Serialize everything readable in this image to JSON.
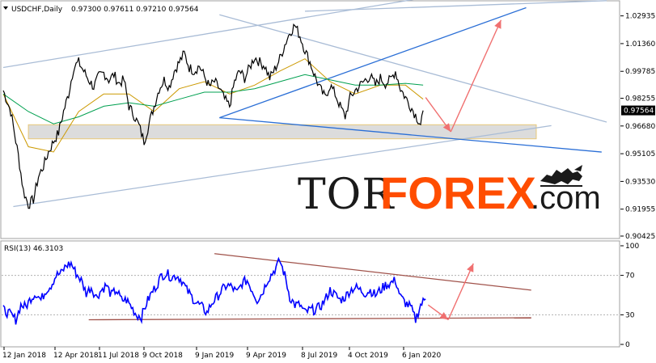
{
  "chart_data": [
    {
      "type": "line",
      "panel": "price",
      "symbol_header": "USDCHF,Daily",
      "ohlc_header": "0.97300 0.97611 0.97210 0.97564",
      "current_price_label": "0.97564",
      "y_ticks": [
        "1.02935",
        "1.01360",
        "0.99785",
        "0.98255",
        "0.96680",
        "0.95105",
        "0.93530",
        "0.91955",
        "0.90425"
      ],
      "y_tick_values": [
        1.02935,
        1.0136,
        0.99785,
        0.98255,
        0.9668,
        0.95105,
        0.9353,
        0.91955,
        0.90425
      ],
      "ylim": [
        0.90425,
        1.0347
      ],
      "x_ticks": [
        "12 Jan 2018",
        "12 Apr 2018",
        "11 Jul 2018",
        "9 Oct 2018",
        "9 Jan 2019",
        "9 Apr 2019",
        "8 Jul 2019",
        "4 Oct 2019",
        "6 Jan 2020"
      ],
      "price_path": [
        [
          0,
          0.987
        ],
        [
          3,
          0.975
        ],
        [
          6,
          0.95
        ],
        [
          8,
          0.93
        ],
        [
          10,
          0.922
        ],
        [
          12,
          0.925
        ],
        [
          14,
          0.938
        ],
        [
          16,
          0.944
        ],
        [
          18,
          0.952
        ],
        [
          20,
          0.958
        ],
        [
          22,
          0.963
        ],
        [
          24,
          0.975
        ],
        [
          26,
          0.985
        ],
        [
          28,
          1.0
        ],
        [
          30,
          1.003
        ],
        [
          32,
          0.998
        ],
        [
          34,
          0.993
        ],
        [
          36,
          0.989
        ],
        [
          38,
          0.995
        ],
        [
          40,
          0.997
        ],
        [
          42,
          0.993
        ],
        [
          44,
          0.996
        ],
        [
          46,
          0.991
        ],
        [
          48,
          0.993
        ],
        [
          50,
          0.978
        ],
        [
          52,
          0.973
        ],
        [
          54,
          0.967
        ],
        [
          56,
          0.958
        ],
        [
          58,
          0.968
        ],
        [
          60,
          0.978
        ],
        [
          62,
          0.988
        ],
        [
          64,
          0.993
        ],
        [
          66,
          0.989
        ],
        [
          68,
          0.998
        ],
        [
          70,
          1.003
        ],
        [
          72,
          1.008
        ],
        [
          74,
          1.0
        ],
        [
          76,
          0.998
        ],
        [
          78,
          1.001
        ],
        [
          80,
          0.995
        ],
        [
          82,
          0.989
        ],
        [
          84,
          0.992
        ],
        [
          86,
          0.988
        ],
        [
          88,
          0.982
        ],
        [
          90,
          0.978
        ],
        [
          92,
          0.992
        ],
        [
          94,
          0.998
        ],
        [
          96,
          0.994
        ],
        [
          98,
          1.0
        ],
        [
          100,
          1.006
        ],
        [
          102,
          1.003
        ],
        [
          104,
          1.001
        ],
        [
          106,
          0.994
        ],
        [
          108,
          0.999
        ],
        [
          110,
          1.005
        ],
        [
          112,
          1.013
        ],
        [
          114,
          1.02
        ],
        [
          116,
          1.024
        ],
        [
          118,
          1.018
        ],
        [
          120,
          1.01
        ],
        [
          122,
          1.003
        ],
        [
          124,
          0.995
        ],
        [
          126,
          0.988
        ],
        [
          128,
          0.983
        ],
        [
          130,
          0.99
        ],
        [
          132,
          0.985
        ],
        [
          134,
          0.978
        ],
        [
          136,
          0.972
        ],
        [
          138,
          0.983
        ],
        [
          140,
          0.987
        ],
        [
          142,
          0.99
        ],
        [
          144,
          0.993
        ],
        [
          146,
          0.995
        ],
        [
          148,
          0.99
        ],
        [
          150,
          0.994
        ],
        [
          152,
          0.991
        ],
        [
          154,
          0.993
        ],
        [
          156,
          0.998
        ],
        [
          158,
          0.988
        ],
        [
          160,
          0.983
        ],
        [
          162,
          0.978
        ],
        [
          164,
          0.973
        ],
        [
          166,
          0.968
        ],
        [
          167,
          0.9756
        ]
      ],
      "moving_averages": [
        {
          "color": "#cc9900",
          "values": [
            [
              0,
              0.985
            ],
            [
              10,
              0.955
            ],
            [
              20,
              0.952
            ],
            [
              30,
              0.975
            ],
            [
              40,
              0.985
            ],
            [
              50,
              0.985
            ],
            [
              60,
              0.975
            ],
            [
              70,
              0.988
            ],
            [
              80,
              0.992
            ],
            [
              90,
              0.985
            ],
            [
              100,
              0.99
            ],
            [
              110,
              0.998
            ],
            [
              120,
              1.005
            ],
            [
              130,
              0.992
            ],
            [
              140,
              0.985
            ],
            [
              150,
              0.99
            ],
            [
              160,
              0.99
            ],
            [
              167,
              0.982
            ]
          ]
        },
        {
          "color": "#00a050",
          "values": [
            [
              0,
              0.985
            ],
            [
              10,
              0.975
            ],
            [
              20,
              0.968
            ],
            [
              30,
              0.972
            ],
            [
              40,
              0.978
            ],
            [
              50,
              0.98
            ],
            [
              60,
              0.978
            ],
            [
              70,
              0.982
            ],
            [
              80,
              0.986
            ],
            [
              90,
              0.986
            ],
            [
              100,
              0.988
            ],
            [
              110,
              0.992
            ],
            [
              120,
              0.996
            ],
            [
              130,
              0.993
            ],
            [
              140,
              0.99
            ],
            [
              150,
              0.99
            ],
            [
              160,
              0.991
            ],
            [
              167,
              0.99
            ]
          ]
        }
      ],
      "support_zone": [
        0.9595,
        0.9675
      ],
      "trendlines": [
        {
          "color": "#a9bcd6",
          "from": [
            0,
            1.0
          ],
          "to": [
            190,
            1.045
          ]
        },
        {
          "color": "#a9bcd6",
          "from": [
            4,
            0.921
          ],
          "to": [
            218,
            0.967
          ]
        },
        {
          "color": "#a9bcd6",
          "from": [
            86,
            1.03
          ],
          "to": [
            240,
            0.969
          ]
        },
        {
          "color": "#a9bcd6",
          "from": [
            120,
            1.032
          ],
          "to": [
            240,
            1.038
          ]
        },
        {
          "color": "#2b6fd6",
          "from": [
            86,
            0.9715
          ],
          "to": [
            238,
            0.952
          ]
        },
        {
          "color": "#2b6fd6",
          "from": [
            86,
            0.9715
          ],
          "to": [
            208,
            1.034
          ]
        }
      ],
      "forecast_arrows": [
        {
          "color": "#f07070",
          "from": [
            168,
            0.983
          ],
          "to": [
            178,
            0.9635
          ]
        },
        {
          "color": "#f07070",
          "from": [
            178,
            0.9635
          ],
          "to": [
            198,
            1.027
          ]
        }
      ]
    },
    {
      "type": "line",
      "panel": "rsi",
      "header": "RSI(13) 46.3103",
      "y_ticks": [
        "100",
        "70",
        "30",
        "0"
      ],
      "y_tick_values": [
        100,
        70,
        30,
        0
      ],
      "ylim": [
        0,
        100
      ],
      "levels": [
        30,
        70
      ],
      "rsi_path": [
        [
          0,
          35
        ],
        [
          3,
          30
        ],
        [
          5,
          25
        ],
        [
          7,
          40
        ],
        [
          9,
          38
        ],
        [
          11,
          47
        ],
        [
          13,
          52
        ],
        [
          15,
          45
        ],
        [
          17,
          55
        ],
        [
          19,
          60
        ],
        [
          21,
          70
        ],
        [
          23,
          72
        ],
        [
          25,
          80
        ],
        [
          27,
          82
        ],
        [
          29,
          72
        ],
        [
          31,
          65
        ],
        [
          33,
          52
        ],
        [
          35,
          58
        ],
        [
          37,
          48
        ],
        [
          39,
          55
        ],
        [
          41,
          60
        ],
        [
          43,
          50
        ],
        [
          45,
          55
        ],
        [
          47,
          45
        ],
        [
          49,
          45
        ],
        [
          51,
          38
        ],
        [
          53,
          30
        ],
        [
          55,
          28
        ],
        [
          57,
          42
        ],
        [
          59,
          52
        ],
        [
          61,
          60
        ],
        [
          63,
          70
        ],
        [
          65,
          72
        ],
        [
          67,
          68
        ],
        [
          69,
          70
        ],
        [
          71,
          65
        ],
        [
          73,
          55
        ],
        [
          75,
          48
        ],
        [
          77,
          42
        ],
        [
          79,
          38
        ],
        [
          81,
          32
        ],
        [
          83,
          42
        ],
        [
          85,
          48
        ],
        [
          87,
          55
        ],
        [
          89,
          60
        ],
        [
          91,
          58
        ],
        [
          93,
          52
        ],
        [
          95,
          62
        ],
        [
          97,
          65
        ],
        [
          99,
          55
        ],
        [
          101,
          45
        ],
        [
          103,
          52
        ],
        [
          105,
          65
        ],
        [
          107,
          72
        ],
        [
          109,
          80
        ],
        [
          110,
          85
        ],
        [
          112,
          70
        ],
        [
          114,
          48
        ],
        [
          116,
          40
        ],
        [
          118,
          40
        ],
        [
          120,
          32
        ],
        [
          122,
          35
        ],
        [
          124,
          35
        ],
        [
          126,
          38
        ],
        [
          128,
          45
        ],
        [
          130,
          55
        ],
        [
          132,
          50
        ],
        [
          134,
          45
        ],
        [
          136,
          48
        ],
        [
          138,
          55
        ],
        [
          140,
          58
        ],
        [
          142,
          55
        ],
        [
          144,
          52
        ],
        [
          146,
          55
        ],
        [
          148,
          50
        ],
        [
          150,
          55
        ],
        [
          152,
          60
        ],
        [
          154,
          62
        ],
        [
          156,
          65
        ],
        [
          158,
          48
        ],
        [
          160,
          42
        ],
        [
          162,
          38
        ],
        [
          164,
          25
        ],
        [
          166,
          40
        ],
        [
          168,
          46
        ]
      ],
      "trendlines": [
        {
          "color": "#a0524a",
          "from": [
            84,
            92
          ],
          "to": [
            210,
            55
          ]
        },
        {
          "color": "#a0524a",
          "from": [
            34,
            25
          ],
          "to": [
            210,
            27
          ]
        }
      ],
      "forecast_arrows": [
        {
          "color": "#f07070",
          "from": [
            169,
            40
          ],
          "to": [
            177,
            25
          ]
        },
        {
          "color": "#f07070",
          "from": [
            177,
            25
          ],
          "to": [
            187,
            82
          ]
        }
      ]
    }
  ],
  "watermark": {
    "part1": "TOR",
    "part2": "FOREX",
    "part3": ".com"
  },
  "colors": {
    "price": "#000000",
    "rsi": "#0000ff",
    "zone_fill": "#d9d9d9",
    "zone_border": "#e6c36a",
    "watermark_orange": "#ff4d00",
    "price_label_bg": "#000000"
  }
}
